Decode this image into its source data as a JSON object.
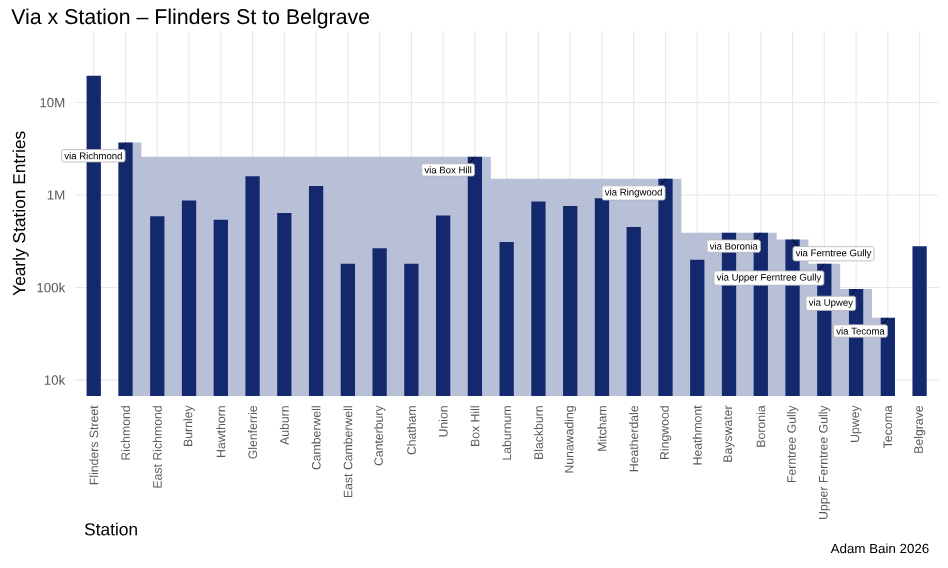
{
  "chart_data": {
    "type": "bar",
    "title": "Via x Station – Flinders St to Belgrave",
    "xlabel": "Station",
    "ylabel": "Yearly Station Entries",
    "categories": [
      "Flinders Street",
      "Richmond",
      "East Richmond",
      "Burnley",
      "Hawthorn",
      "Glenferrie",
      "Auburn",
      "Camberwell",
      "East Camberwell",
      "Canterbury",
      "Chatham",
      "Union",
      "Box Hill",
      "Laburnum",
      "Blackburn",
      "Nunawading",
      "Mitcham",
      "Heatherdale",
      "Ringwood",
      "Heathmont",
      "Bayswater",
      "Boronia",
      "Ferntree Gully",
      "Upper Ferntree Gully",
      "Upwey",
      "Tecoma",
      "Belgrave"
    ],
    "series": [
      {
        "color": "#14286e",
        "values": [
          19500000,
          3700000,
          590000,
          870000,
          540000,
          1600000,
          640000,
          1250000,
          180000,
          265000,
          180000,
          600000,
          2600000,
          310000,
          850000,
          760000,
          920000,
          450000,
          1500000,
          200000,
          390000,
          390000,
          330000,
          180000,
          96000,
          47000,
          280000
        ]
      },
      {
        "type": "area",
        "color": "#b8c0d8",
        "values": [
          null,
          3700000,
          2600000,
          2600000,
          2600000,
          2600000,
          2600000,
          2600000,
          2600000,
          2600000,
          2600000,
          2600000,
          2600000,
          1500000,
          1500000,
          1500000,
          1500000,
          1500000,
          1500000,
          390000,
          390000,
          390000,
          330000,
          180000,
          96000,
          47000,
          null
        ]
      }
    ],
    "log": "y",
    "ylim": [
      6700,
      60000000
    ],
    "yticks": [
      {
        "value": 10000,
        "label": "10k"
      },
      {
        "value": 100000,
        "label": "100k"
      },
      {
        "value": 1000000,
        "label": "1M"
      },
      {
        "value": 10000000,
        "label": "10M"
      }
    ],
    "grid": true,
    "annotations": [
      {
        "text": "via Richmond",
        "x": "Richmond",
        "y": 3700000
      },
      {
        "text": "via Box Hill",
        "x": "Box Hill",
        "y": 2600000
      },
      {
        "text": "via Ringwood",
        "x": "Ringwood",
        "y": 1500000
      },
      {
        "text": "via Boronia",
        "x": "Boronia",
        "y": 390000
      },
      {
        "text": "via Ferntree Gully",
        "x": "Ferntree Gully",
        "y": 330000
      },
      {
        "text": "via Upper Ferntree Gully",
        "x": "Upper Ferntree Gully",
        "y": 180000
      },
      {
        "text": "via Upwey",
        "x": "Upwey",
        "y": 96000
      },
      {
        "text": "via Tecoma",
        "x": "Tecoma",
        "y": 47000
      },
      "Adam Bain 2026"
    ]
  }
}
